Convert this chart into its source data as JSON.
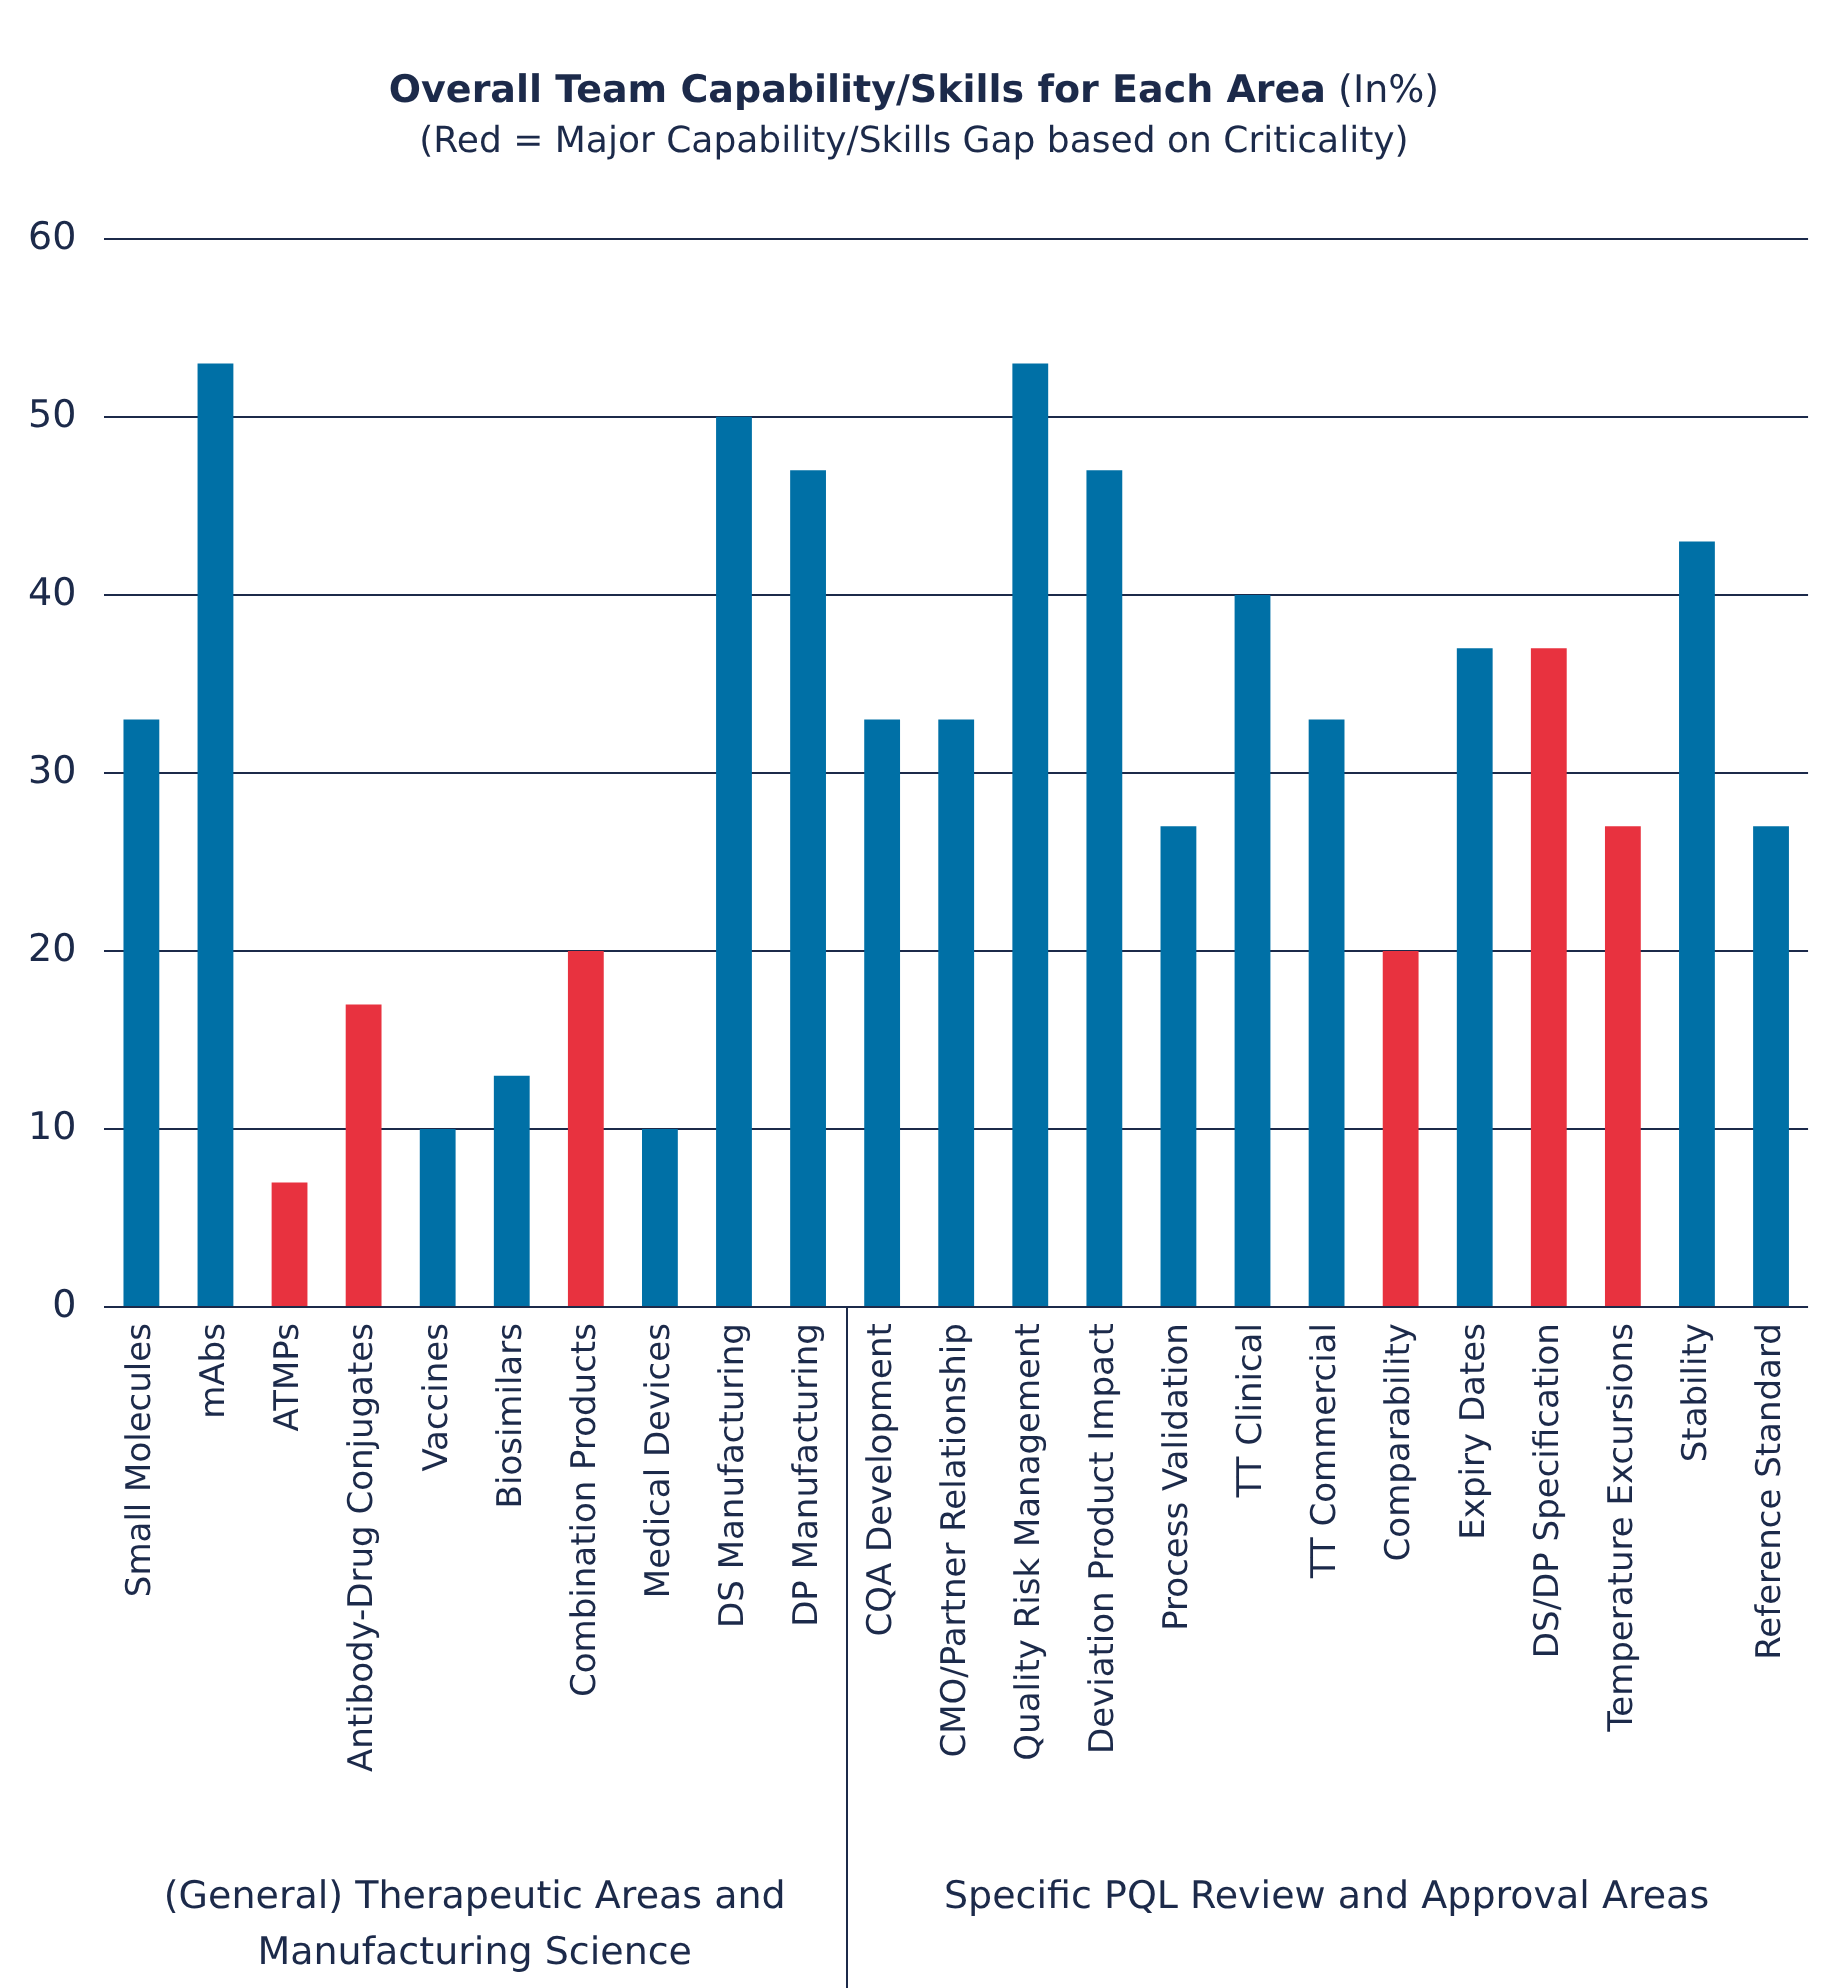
{
  "chart_data": {
    "type": "bar",
    "title": "Overall Team Capability/Skills for Each Area (In%)",
    "subtitle": "(Red = Major Capability/Skills Gap based on Criticality)",
    "categories": [
      "Small Molecules",
      "mAbs",
      "ATMPs",
      "Antibody-Drug Conjugates",
      "Vaccines",
      "Biosimilars",
      "Combination Products",
      "Medical Devices",
      "DS Manufacturing",
      "DP Manufacturing",
      "CQA Development",
      "CMO/Partner Relationship",
      "Quality Risk Management",
      "Deviation Product Impact",
      "Process Validation",
      "TT Clinical",
      "TT Commercial",
      "Comparability",
      "Expiry Dates",
      "DS/DP Specification",
      "Temperature Excursions",
      "Stability",
      "Reference Standard"
    ],
    "values": [
      33,
      53,
      7,
      17,
      10,
      13,
      20,
      10,
      50,
      47,
      33,
      33,
      53,
      47,
      27,
      40,
      33,
      20,
      37,
      37,
      27,
      43,
      27
    ],
    "colors": [
      "#0070a6",
      "#0070a6",
      "#e8323f",
      "#e8323f",
      "#0070a6",
      "#0070a6",
      "#e8323f",
      "#0070a6",
      "#0070a6",
      "#0070a6",
      "#0070a6",
      "#0070a6",
      "#0070a6",
      "#0070a6",
      "#0070a6",
      "#0070a6",
      "#0070a6",
      "#e8323f",
      "#0070a6",
      "#e8323f",
      "#e8323f",
      "#0070a6",
      "#0070a6"
    ],
    "ylim": [
      0,
      60
    ],
    "yticks": [
      0,
      10,
      20,
      30,
      40,
      50,
      60
    ],
    "grid": "y",
    "legend": false,
    "annotations": [
      "(General) Therapeutic Areas and Manufacturing Science",
      "Specific PQL Review and Approval Areas"
    ]
  }
}
